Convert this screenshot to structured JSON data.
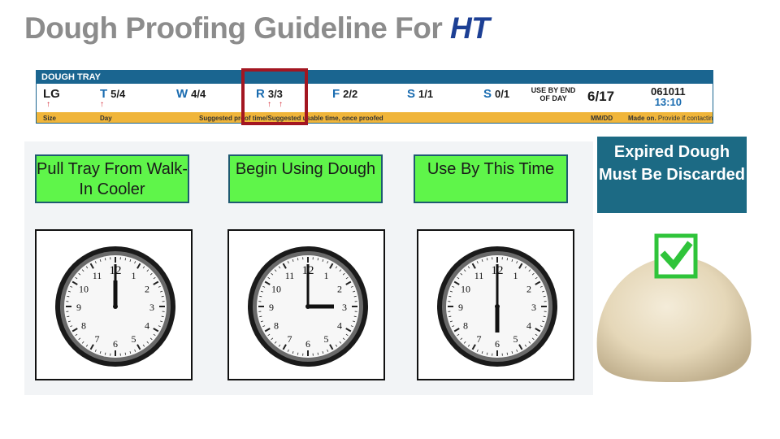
{
  "title": {
    "main": "Dough Proofing Guideline For",
    "accent": "HT"
  },
  "tray": {
    "header": "DOUGH TRAY",
    "size": "LG",
    "days": [
      {
        "letter": "T",
        "value": "5/4"
      },
      {
        "letter": "W",
        "value": "4/4"
      },
      {
        "letter": "R",
        "value": "3/3"
      },
      {
        "letter": "F",
        "value": "2/2"
      },
      {
        "letter": "S",
        "value": "1/1"
      },
      {
        "letter": "S",
        "value": "0/1"
      }
    ],
    "use_by_line1": "USE BY END",
    "use_by_line2": "OF DAY",
    "date": "6/17",
    "code_line1": "061011",
    "code_line2": "13:10",
    "footer": {
      "size": "Size",
      "day": "Day",
      "suggested": "Suggested proof time/Suggested usable time, once proofed",
      "mmdd": "MM/DD",
      "made_on": "Made on.",
      "provide": "Provide if contacting SCC"
    }
  },
  "steps": [
    {
      "label": "Pull Tray From Walk-In Cooler",
      "clock": {
        "hour": 12,
        "minute": 0
      }
    },
    {
      "label": "Begin Using Dough",
      "clock": {
        "hour": 3,
        "minute": 0
      }
    },
    {
      "label": "Use By This Time",
      "clock": {
        "hour": 6,
        "minute": 0
      }
    }
  ],
  "expired": "Expired Dough Must Be Discarded",
  "icons": {
    "checkmark": "check-box-icon",
    "arrow": "up-arrow-icon"
  },
  "colors": {
    "step_bg": "#5ff54a",
    "expired_bg": "#1c6a84",
    "highlight": "#a31621",
    "tray_blue": "#1a6590",
    "tray_gold": "#f0b53a"
  }
}
